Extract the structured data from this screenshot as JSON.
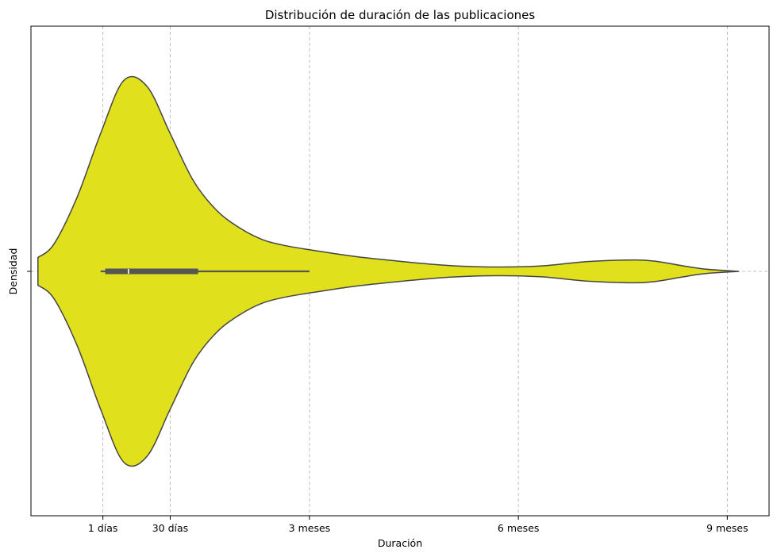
{
  "chart_data": {
    "type": "violin",
    "title": "Distribución de duración de las publicaciones",
    "xlabel": "Duración",
    "ylabel": "Densidad",
    "x_unit": "days",
    "xlim": [
      -30,
      288
    ],
    "x_ticks": [
      {
        "value": 1,
        "label": "1 días"
      },
      {
        "value": 30,
        "label": "30 días"
      },
      {
        "value": 90,
        "label": "3 meses"
      },
      {
        "value": 180,
        "label": "6 meses"
      },
      {
        "value": 270,
        "label": "9 meses"
      }
    ],
    "grid": true,
    "fill_color": "#e0e01c",
    "edge_color": "#454545",
    "box_color": "#555555",
    "median_color": "#ffffff",
    "summary": {
      "whisker_low": 0,
      "q1": 2,
      "median": 12,
      "q3": 42,
      "whisker_high": 90
    },
    "density_profile": {
      "x": [
        -27,
        -20,
        -10,
        0,
        10,
        20,
        30,
        40,
        50,
        60,
        70,
        80,
        90,
        110,
        130,
        150,
        170,
        190,
        210,
        230,
        240,
        250,
        260,
        275
      ],
      "density": [
        0.07,
        0.14,
        0.38,
        0.7,
        0.97,
        0.94,
        0.7,
        0.46,
        0.31,
        0.22,
        0.16,
        0.13,
        0.11,
        0.075,
        0.05,
        0.03,
        0.022,
        0.028,
        0.05,
        0.058,
        0.05,
        0.03,
        0.012,
        0.0
      ]
    }
  }
}
